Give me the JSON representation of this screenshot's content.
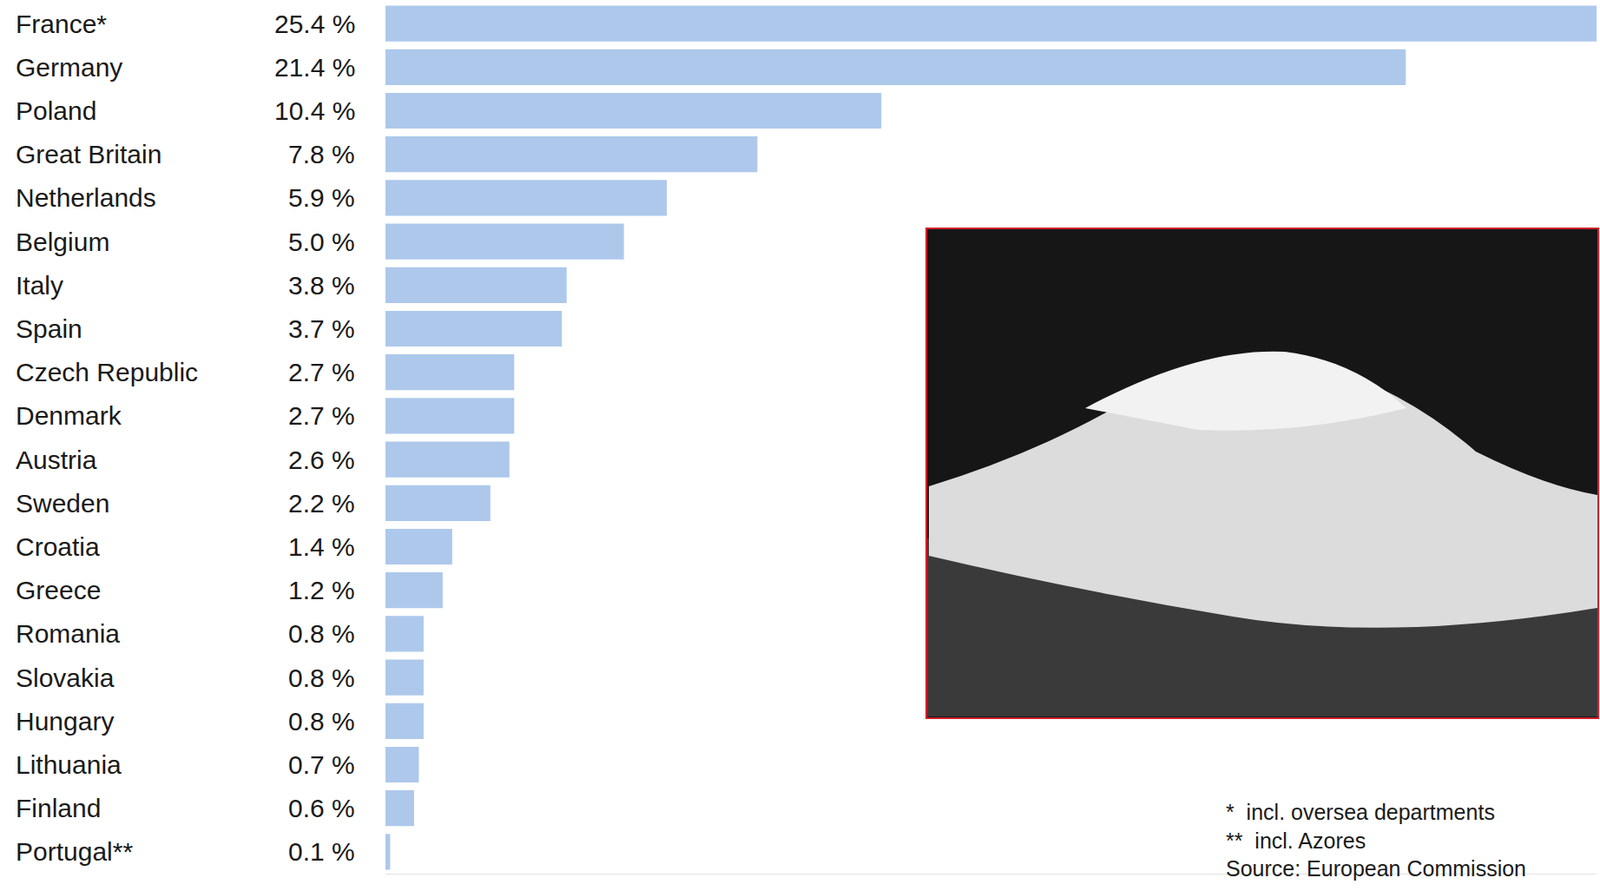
{
  "chart_data": {
    "type": "bar",
    "orientation": "horizontal",
    "categories": [
      "France*",
      "Germany",
      "Poland",
      "Great Britain",
      "Netherlands",
      "Belgium",
      "Italy",
      "Spain",
      "Czech Republic",
      "Denmark",
      "Austria",
      "Sweden",
      "Croatia",
      "Greece",
      "Romania",
      "Slovakia",
      "Hungary",
      "Lithuania",
      "Finland",
      "Portugal**"
    ],
    "values": [
      25.4,
      21.4,
      10.4,
      7.8,
      5.9,
      5.0,
      3.8,
      3.7,
      2.7,
      2.7,
      2.6,
      2.2,
      1.4,
      1.2,
      0.8,
      0.8,
      0.8,
      0.7,
      0.6,
      0.1
    ],
    "value_labels": [
      "25.4 %",
      "21.4 %",
      "10.4 %",
      "7.8 %",
      "5.9 %",
      "5.0 %",
      "3.8 %",
      "3.7 %",
      "2.7 %",
      "2.7 %",
      "2.6 %",
      "2.2 %",
      "1.4 %",
      "1.2 %",
      "0.8 %",
      "0.8 %",
      "0.8 %",
      "0.7 %",
      "0.6 %",
      "0.1 %"
    ],
    "data_labels": true,
    "color": "#adc8eb",
    "xlim": [
      0,
      25.4
    ],
    "tick_labels": false,
    "grid": false,
    "notes": [
      "*  incl. oversea departments",
      "**  incl. Azores"
    ],
    "source": "Source: European Commission"
  }
}
